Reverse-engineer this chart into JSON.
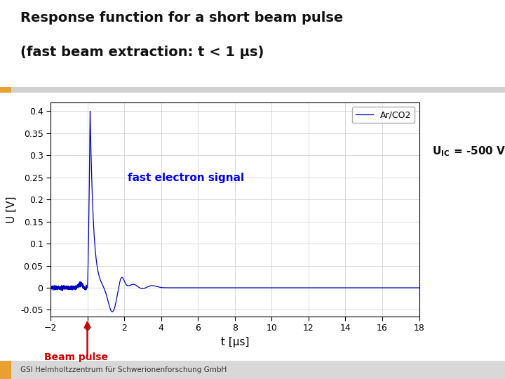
{
  "title_line1": "Response function for a short beam pulse",
  "title_line2": "(fast beam extraction: t < 1 μs)",
  "xlabel": "t [μs]",
  "ylabel": "U [V]",
  "xlim": [
    -2,
    18
  ],
  "ylim": [
    -0.065,
    0.42
  ],
  "yticks": [
    -0.05,
    0,
    0.05,
    0.1,
    0.15,
    0.2,
    0.25,
    0.3,
    0.35,
    0.4
  ],
  "xticks": [
    -2,
    0,
    2,
    4,
    6,
    8,
    10,
    12,
    14,
    16,
    18
  ],
  "line_color": "#0000BB",
  "line_label": "Ar/CO2",
  "annotation_text": "fast electron signal",
  "annotation_color": "#0000EE",
  "uic_label": "U",
  "uic_text": " = -500 V",
  "beam_pulse_text": "Beam pulse",
  "beam_pulse_color": "#CC0000",
  "bg_color": "#FFFFFF",
  "header_bg": "#FFFFFF",
  "plot_bg_color": "#FFFFFF",
  "panel_bg": "#E8E8E8",
  "footer_text": "GSI Helmholtzzentrum für Schwerionenforschung GmbH",
  "orange_color": "#E8A030",
  "title_fontsize": 14,
  "axis_fontsize": 10,
  "tick_fontsize": 9,
  "legend_fontsize": 9
}
